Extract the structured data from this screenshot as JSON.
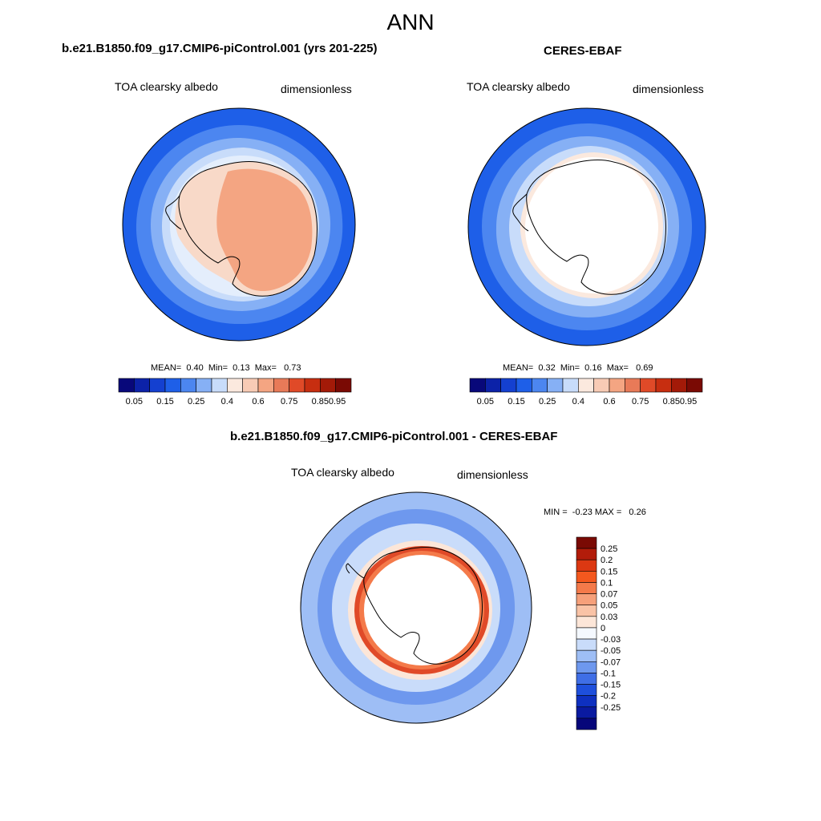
{
  "page_title": "ANN",
  "panel_left": {
    "case_title": "b.e21.B1850.f09_g17.CMIP6-piControl.001 (yrs 201-225)",
    "variable": "TOA clearsky albedo",
    "units": "dimensionless",
    "stats": {
      "mean_label": "MEAN=",
      "mean": "0.40",
      "min_label": "Min=",
      "min": "0.13",
      "max_label": "Max=",
      "max": "0.73"
    }
  },
  "panel_right": {
    "case_title": "CERES-EBAF",
    "variable": "TOA clearsky albedo",
    "units": "dimensionless",
    "stats": {
      "mean_label": "MEAN=",
      "mean": "0.32",
      "min_label": "Min=",
      "min": "0.16",
      "max_label": "Max=",
      "max": "0.69"
    }
  },
  "panel_diff": {
    "case_title": "b.e21.B1850.f09_g17.CMIP6-piControl.001 - CERES-EBAF",
    "variable": "TOA clearsky albedo",
    "units": "dimensionless",
    "minmax": {
      "min_label": "MIN =",
      "min": "-0.23",
      "max_label": "MAX =",
      "max": "0.26"
    }
  },
  "abs_colorbar": {
    "colors": [
      "#08087a",
      "#0c22a8",
      "#1440d0",
      "#1e5fe8",
      "#4c86f0",
      "#86b0f5",
      "#c8dcfa",
      "#fbe9de",
      "#f8cbb5",
      "#f4a582",
      "#e87a58",
      "#e04a28",
      "#c72e10",
      "#a31a08",
      "#7a0a04"
    ],
    "tick_labels": [
      "0.05",
      "0.15",
      "0.25",
      "0.4",
      "0.6",
      "0.75",
      "0.85",
      "0.95"
    ]
  },
  "diff_colorbar": {
    "colors": [
      "#7a0a04",
      "#b21c0a",
      "#dc3812",
      "#f4581e",
      "#f47a4a",
      "#f6a07a",
      "#f9c3a6",
      "#fce6d8",
      "#f4f8fe",
      "#c9dcfa",
      "#9ebef5",
      "#6e98ee",
      "#3f6ee6",
      "#1e4fdc",
      "#0e30c0",
      "#0a1aa0",
      "#06067a"
    ],
    "tick_labels": [
      "0.25",
      "0.2",
      "0.15",
      "0.1",
      "0.07",
      "0.05",
      "0.03",
      "0",
      "-0.03",
      "-0.05",
      "-0.07",
      "-0.1",
      "-0.15",
      "-0.2",
      "-0.25"
    ]
  },
  "style_colors": {
    "ocean_open": "#1e5fe8",
    "ocean_mid": "#4c86f0",
    "ocean_light": "#86b0f5",
    "ice_edge": "#c8dcfa",
    "land_model_edge": "#f8d9c8",
    "land_model": "#f4a582",
    "land_obs": "#ffffff",
    "diff_red": "#e04a28",
    "diff_blue": "#3f6ee6",
    "diff_light": "#c9dcfa"
  }
}
